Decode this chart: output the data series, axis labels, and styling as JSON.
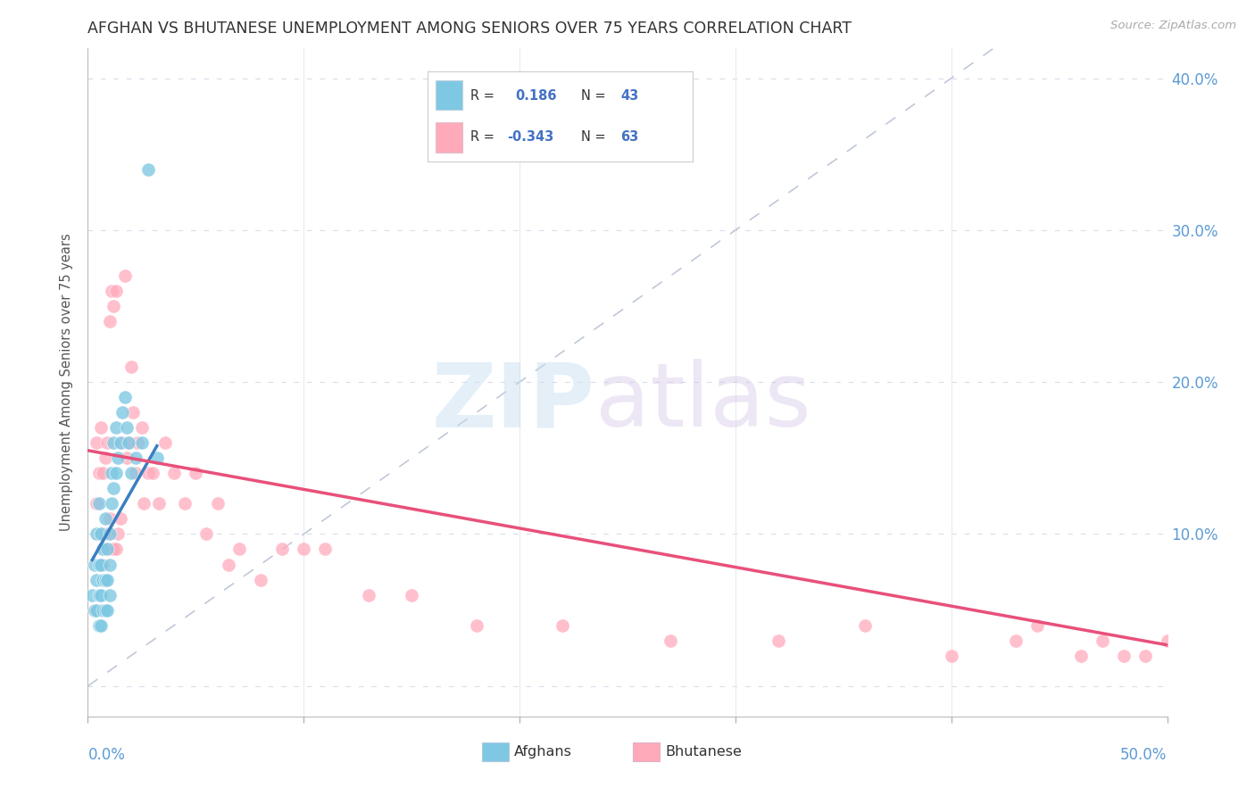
{
  "title": "AFGHAN VS BHUTANESE UNEMPLOYMENT AMONG SENIORS OVER 75 YEARS CORRELATION CHART",
  "source": "Source: ZipAtlas.com",
  "ylabel": "Unemployment Among Seniors over 75 years",
  "xlim": [
    0.0,
    0.5
  ],
  "ylim": [
    -0.02,
    0.42
  ],
  "color_afghan": "#7ec8e3",
  "color_bhutanese": "#ffaabb",
  "color_trendline_afghan": "#3a7fc1",
  "color_trendline_bhutanese": "#e8507a",
  "color_refline": "#c0c8d8",
  "afghans_x": [
    0.002,
    0.003,
    0.003,
    0.004,
    0.004,
    0.004,
    0.005,
    0.005,
    0.005,
    0.005,
    0.006,
    0.006,
    0.006,
    0.006,
    0.007,
    0.007,
    0.007,
    0.008,
    0.008,
    0.008,
    0.009,
    0.009,
    0.009,
    0.01,
    0.01,
    0.01,
    0.011,
    0.011,
    0.012,
    0.012,
    0.013,
    0.013,
    0.014,
    0.015,
    0.016,
    0.017,
    0.018,
    0.019,
    0.02,
    0.022,
    0.025,
    0.028,
    0.032
  ],
  "afghans_y": [
    0.06,
    0.05,
    0.08,
    0.05,
    0.07,
    0.1,
    0.04,
    0.06,
    0.08,
    0.12,
    0.04,
    0.06,
    0.08,
    0.1,
    0.05,
    0.07,
    0.09,
    0.05,
    0.07,
    0.11,
    0.05,
    0.07,
    0.09,
    0.06,
    0.08,
    0.1,
    0.12,
    0.14,
    0.13,
    0.16,
    0.14,
    0.17,
    0.15,
    0.16,
    0.18,
    0.19,
    0.17,
    0.16,
    0.14,
    0.15,
    0.16,
    0.34,
    0.15
  ],
  "bhutanese_x": [
    0.003,
    0.004,
    0.004,
    0.005,
    0.005,
    0.006,
    0.006,
    0.007,
    0.007,
    0.008,
    0.008,
    0.009,
    0.009,
    0.01,
    0.01,
    0.011,
    0.011,
    0.012,
    0.012,
    0.013,
    0.013,
    0.014,
    0.015,
    0.016,
    0.017,
    0.018,
    0.019,
    0.02,
    0.021,
    0.022,
    0.023,
    0.025,
    0.026,
    0.028,
    0.03,
    0.033,
    0.036,
    0.04,
    0.045,
    0.05,
    0.055,
    0.06,
    0.065,
    0.07,
    0.08,
    0.09,
    0.1,
    0.11,
    0.13,
    0.15,
    0.18,
    0.22,
    0.27,
    0.32,
    0.36,
    0.4,
    0.43,
    0.44,
    0.46,
    0.47,
    0.48,
    0.49,
    0.5
  ],
  "bhutanese_y": [
    0.05,
    0.12,
    0.16,
    0.08,
    0.14,
    0.1,
    0.17,
    0.08,
    0.14,
    0.09,
    0.15,
    0.1,
    0.16,
    0.11,
    0.24,
    0.09,
    0.26,
    0.09,
    0.25,
    0.09,
    0.26,
    0.1,
    0.11,
    0.16,
    0.27,
    0.15,
    0.16,
    0.21,
    0.18,
    0.14,
    0.16,
    0.17,
    0.12,
    0.14,
    0.14,
    0.12,
    0.16,
    0.14,
    0.12,
    0.14,
    0.1,
    0.12,
    0.08,
    0.09,
    0.07,
    0.09,
    0.09,
    0.09,
    0.06,
    0.06,
    0.04,
    0.04,
    0.03,
    0.03,
    0.04,
    0.02,
    0.03,
    0.04,
    0.02,
    0.03,
    0.02,
    0.02,
    0.03
  ],
  "trendline_bhut_x0": 0.0,
  "trendline_bhut_x1": 0.5,
  "trendline_bhut_y0": 0.155,
  "trendline_bhut_y1": 0.027,
  "trendline_afg_x0": 0.002,
  "trendline_afg_x1": 0.032,
  "trendline_afg_y0": 0.083,
  "trendline_afg_y1": 0.158
}
